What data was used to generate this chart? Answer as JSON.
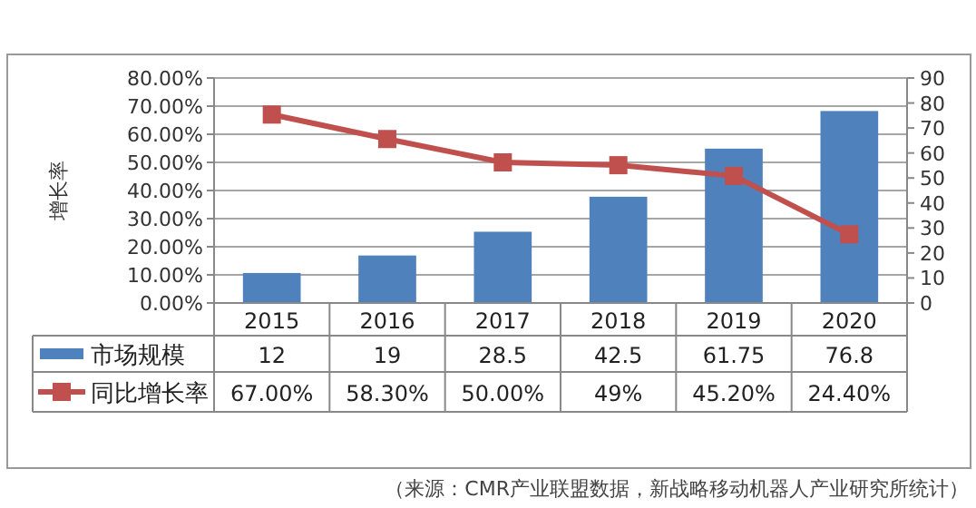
{
  "chart_data": {
    "type": "bar",
    "categories": [
      "2015",
      "2016",
      "2017",
      "2018",
      "2019",
      "2020"
    ],
    "ylabel": "增长率",
    "ylim": [
      0,
      80
    ],
    "yticks": [
      {
        "value": 0,
        "label": "0.00%"
      },
      {
        "value": 10,
        "label": "10.00%"
      },
      {
        "value": 20,
        "label": "20.00%"
      },
      {
        "value": 30,
        "label": "30.00%"
      },
      {
        "value": 40,
        "label": "40.00%"
      },
      {
        "value": 50,
        "label": "50.00%"
      },
      {
        "value": 60,
        "label": "60.00%"
      },
      {
        "value": 70,
        "label": "70.00%"
      },
      {
        "value": 80,
        "label": "80.00%"
      }
    ],
    "y2lim": [
      0,
      90
    ],
    "y2ticks": [
      0,
      10,
      20,
      30,
      40,
      50,
      60,
      70,
      80,
      90
    ],
    "grid": "y",
    "legend": "bottom",
    "marker": "square",
    "line_style": "solid",
    "annotations": [
      "（来源：CMR产业联盟数据，新战略移动机器人产业研究所统计）"
    ],
    "series": [
      {
        "name": "市场规模",
        "axis": "y2",
        "color": "#4f81bd",
        "values": [
          12,
          19,
          28.5,
          42.5,
          61.75,
          76.8
        ],
        "value_labels": [
          "12",
          "19",
          "28.5",
          "42.5",
          "61.75",
          "76.8"
        ]
      },
      {
        "name": "同比增长率",
        "type": "line",
        "color": "#c0504d",
        "values": [
          67,
          58.3,
          50,
          49,
          45.2,
          24.4
        ],
        "value_labels": [
          "67.00%",
          "58.30%",
          "50.00%",
          "49%",
          "45.20%",
          "24.40%"
        ]
      }
    ]
  }
}
